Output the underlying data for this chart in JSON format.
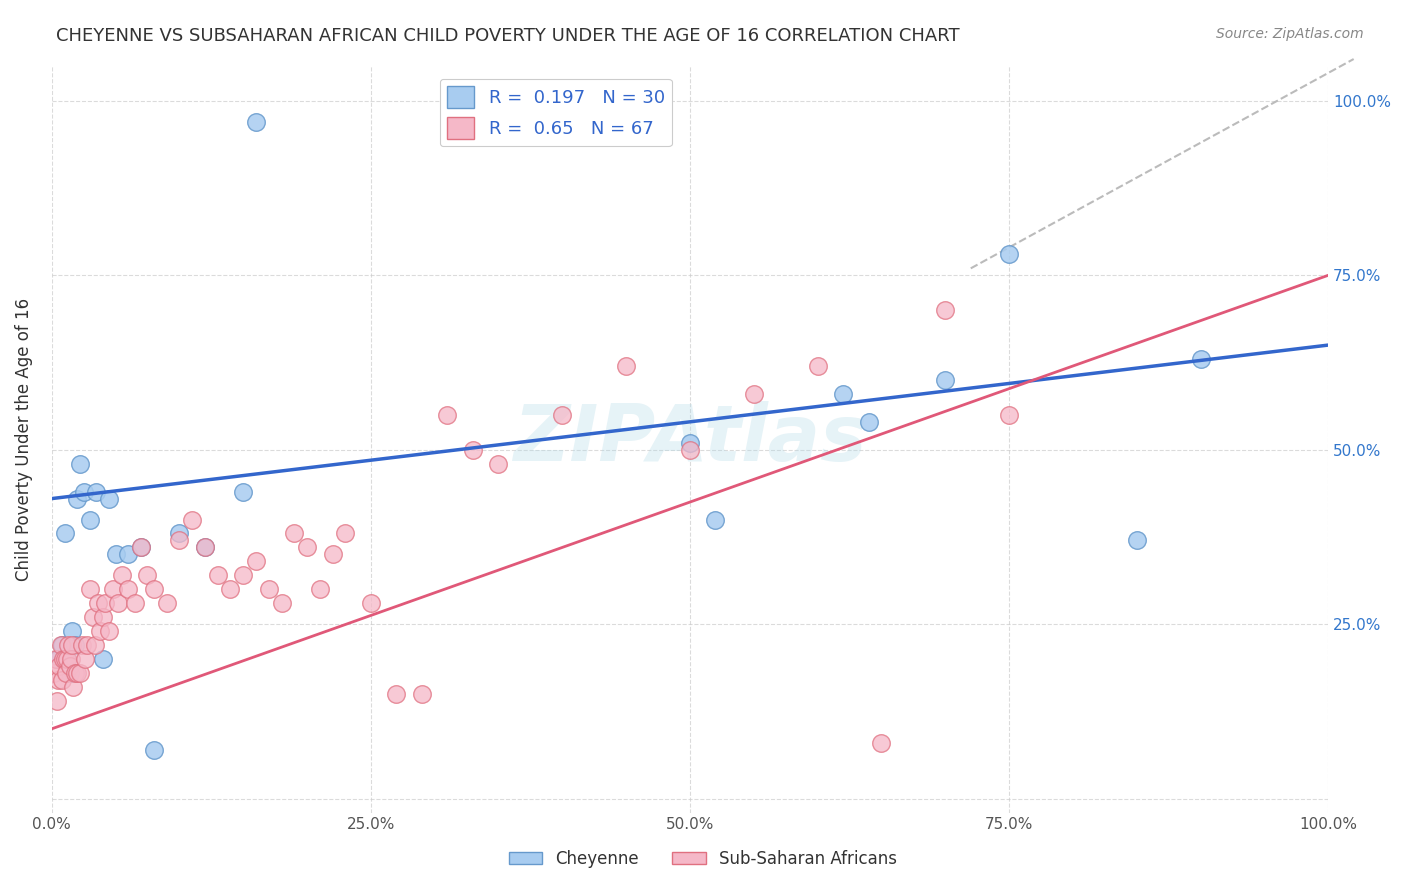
{
  "title": "CHEYENNE VS SUBSAHARAN AFRICAN CHILD POVERTY UNDER THE AGE OF 16 CORRELATION CHART",
  "source": "Source: ZipAtlas.com",
  "ylabel": "Child Poverty Under the Age of 16",
  "xlim": [
    0,
    1
  ],
  "ylim": [
    -0.02,
    1.05
  ],
  "xticks": [
    0.0,
    0.25,
    0.5,
    0.75,
    1.0
  ],
  "yticks": [
    0.0,
    0.25,
    0.5,
    0.75,
    1.0
  ],
  "xticklabels": [
    "0.0%",
    "25.0%",
    "50.0%",
    "75.0%",
    "100.0%"
  ],
  "right_yticklabels": [
    "",
    "25.0%",
    "50.0%",
    "75.0%",
    "100.0%"
  ],
  "cheyenne_color": "#A8CCF0",
  "cheyenne_edge": "#6699CC",
  "subsaharan_color": "#F5B8C8",
  "subsaharan_edge": "#E07080",
  "blue_line_color": "#3366CC",
  "pink_line_color": "#E05878",
  "dashed_line_color": "#BBBBBB",
  "R_cheyenne": 0.197,
  "N_cheyenne": 30,
  "R_subsaharan": 0.65,
  "N_subsaharan": 67,
  "legend_label_cheyenne": "Cheyenne",
  "legend_label_subsaharan": "Sub-Saharan Africans",
  "watermark": "ZIPAtlas",
  "blue_line_y0": 0.43,
  "blue_line_y1": 0.65,
  "pink_line_y0": 0.1,
  "pink_line_y1": 0.75,
  "cheyenne_x": [
    0.005,
    0.008,
    0.01,
    0.012,
    0.014,
    0.016,
    0.018,
    0.02,
    0.022,
    0.025,
    0.03,
    0.035,
    0.04,
    0.045,
    0.05,
    0.06,
    0.07,
    0.08,
    0.1,
    0.12,
    0.15,
    0.16,
    0.5,
    0.52,
    0.62,
    0.64,
    0.7,
    0.75,
    0.85,
    0.9
  ],
  "cheyenne_y": [
    0.2,
    0.22,
    0.38,
    0.2,
    0.18,
    0.24,
    0.22,
    0.43,
    0.48,
    0.44,
    0.4,
    0.44,
    0.2,
    0.43,
    0.35,
    0.35,
    0.36,
    0.07,
    0.38,
    0.36,
    0.44,
    0.97,
    0.51,
    0.4,
    0.58,
    0.54,
    0.6,
    0.78,
    0.37,
    0.63
  ],
  "subsaharan_x": [
    0.002,
    0.003,
    0.004,
    0.005,
    0.006,
    0.007,
    0.008,
    0.009,
    0.01,
    0.011,
    0.012,
    0.013,
    0.014,
    0.015,
    0.016,
    0.017,
    0.018,
    0.02,
    0.022,
    0.024,
    0.026,
    0.028,
    0.03,
    0.032,
    0.034,
    0.036,
    0.038,
    0.04,
    0.042,
    0.045,
    0.048,
    0.052,
    0.055,
    0.06,
    0.065,
    0.07,
    0.075,
    0.08,
    0.09,
    0.1,
    0.11,
    0.12,
    0.13,
    0.14,
    0.15,
    0.16,
    0.17,
    0.18,
    0.19,
    0.2,
    0.21,
    0.22,
    0.23,
    0.25,
    0.27,
    0.29,
    0.31,
    0.33,
    0.35,
    0.4,
    0.45,
    0.5,
    0.55,
    0.6,
    0.65,
    0.7,
    0.75
  ],
  "subsaharan_y": [
    0.18,
    0.2,
    0.14,
    0.17,
    0.19,
    0.22,
    0.17,
    0.2,
    0.2,
    0.18,
    0.2,
    0.22,
    0.19,
    0.2,
    0.22,
    0.16,
    0.18,
    0.18,
    0.18,
    0.22,
    0.2,
    0.22,
    0.3,
    0.26,
    0.22,
    0.28,
    0.24,
    0.26,
    0.28,
    0.24,
    0.3,
    0.28,
    0.32,
    0.3,
    0.28,
    0.36,
    0.32,
    0.3,
    0.28,
    0.37,
    0.4,
    0.36,
    0.32,
    0.3,
    0.32,
    0.34,
    0.3,
    0.28,
    0.38,
    0.36,
    0.3,
    0.35,
    0.38,
    0.28,
    0.15,
    0.15,
    0.55,
    0.5,
    0.48,
    0.55,
    0.62,
    0.5,
    0.58,
    0.62,
    0.08,
    0.7,
    0.55
  ],
  "background_color": "#FFFFFF",
  "grid_color": "#CCCCCC"
}
